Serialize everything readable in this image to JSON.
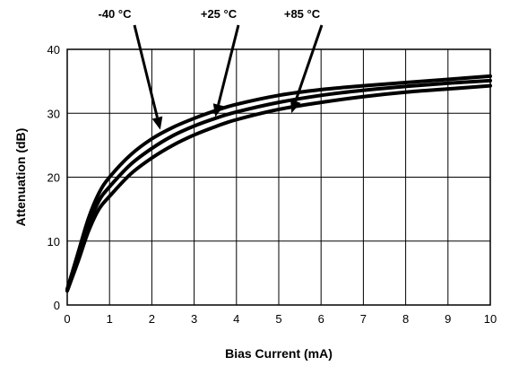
{
  "chart_data": {
    "type": "line",
    "title": "",
    "xlabel": "Bias Current (mA)",
    "ylabel": "Attenuation (dB)",
    "xlim": [
      0,
      10
    ],
    "ylim": [
      0,
      40
    ],
    "xticks": [
      0,
      1,
      2,
      3,
      4,
      5,
      6,
      7,
      8,
      9,
      10
    ],
    "yticks": [
      0,
      10,
      20,
      30,
      40
    ],
    "grid": true,
    "legend": "callout labels above plot",
    "series": [
      {
        "name": "-40 °C",
        "x": [
          0,
          0.25,
          0.5,
          0.75,
          1,
          1.5,
          2,
          2.5,
          3,
          3.5,
          4,
          5,
          6,
          7,
          8,
          9,
          10
        ],
        "y": [
          2.5,
          8,
          13.5,
          17.5,
          20,
          23.5,
          26,
          27.8,
          29.2,
          30.4,
          31.4,
          32.8,
          33.7,
          34.3,
          34.8,
          35.3,
          35.8
        ]
      },
      {
        "name": "+25 °C",
        "x": [
          0,
          0.25,
          0.5,
          0.75,
          1,
          1.5,
          2,
          2.5,
          3,
          3.5,
          4,
          5,
          6,
          7,
          8,
          9,
          10
        ],
        "y": [
          2.3,
          7.3,
          12.5,
          16.3,
          18.5,
          22,
          24.5,
          26.5,
          28,
          29.2,
          30.2,
          31.7,
          32.8,
          33.6,
          34.2,
          34.7,
          35.1
        ]
      },
      {
        "name": "+85 °C",
        "x": [
          0,
          0.25,
          0.5,
          0.75,
          1,
          1.5,
          2,
          2.5,
          3,
          3.5,
          4,
          5,
          6,
          7,
          8,
          9,
          10
        ],
        "y": [
          2.2,
          6.7,
          11.5,
          15,
          17,
          20.5,
          23,
          25,
          26.6,
          27.9,
          29,
          30.6,
          31.7,
          32.6,
          33.3,
          33.8,
          34.3
        ]
      }
    ],
    "callouts": [
      {
        "series": "-40 °C",
        "x": 2.2,
        "y": 27
      },
      {
        "series": "+25 °C",
        "x": 3.5,
        "y": 29
      },
      {
        "series": "+85 °C",
        "x": 5.3,
        "y": 29.6
      }
    ]
  }
}
